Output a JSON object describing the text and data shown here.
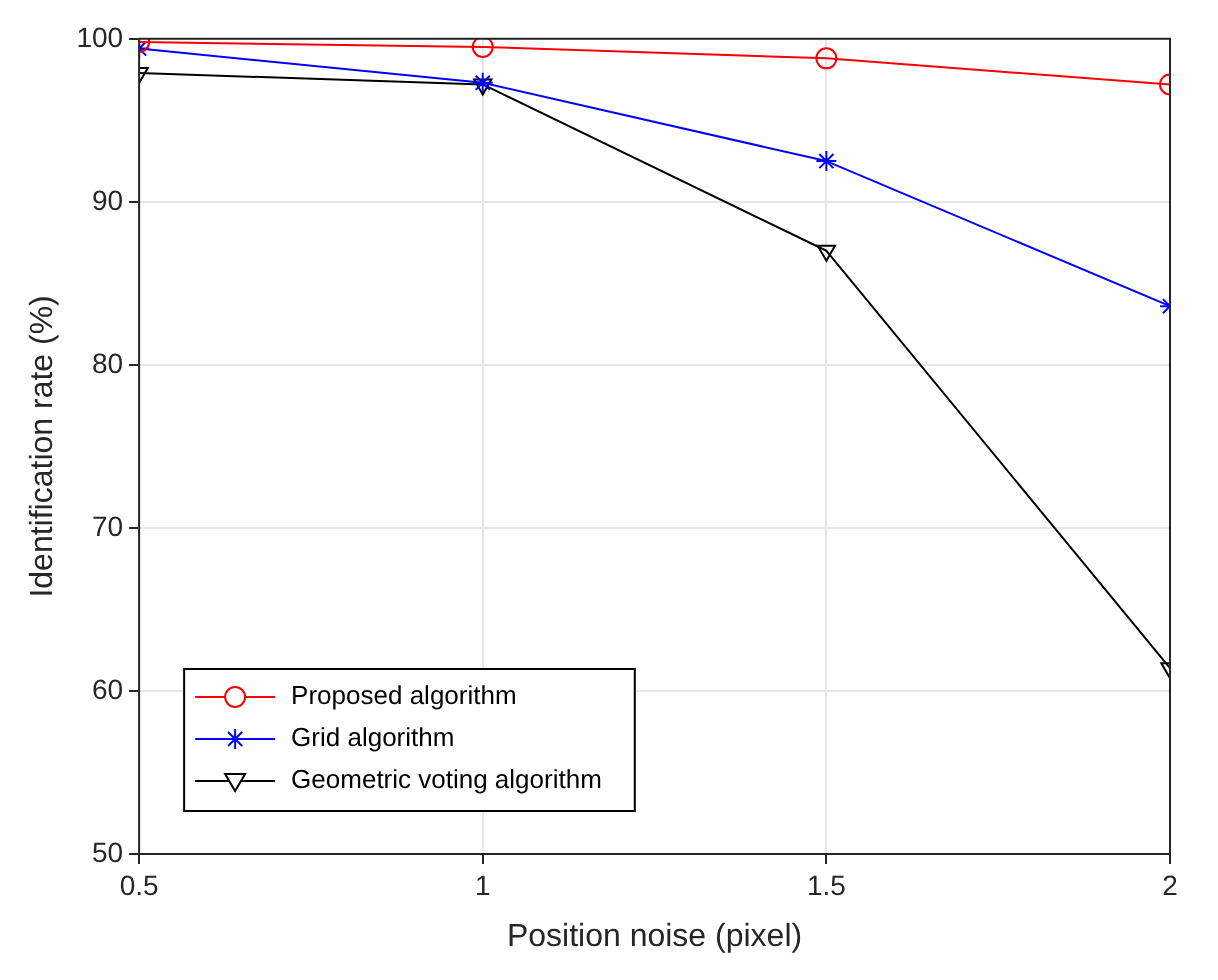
{
  "chart_data": {
    "type": "line",
    "xlabel": "Position noise (pixel)",
    "ylabel": "Identification rate (%)",
    "x": [
      0.5,
      1,
      1.5,
      2
    ],
    "xlim": [
      0.5,
      2
    ],
    "xticks": [
      0.5,
      1,
      1.5,
      2
    ],
    "ylim": [
      50,
      100
    ],
    "yticks": [
      50,
      60,
      70,
      80,
      90,
      100
    ],
    "grid": true,
    "legend": "bottom left",
    "series": [
      {
        "name": "Proposed algorithm",
        "color": "#ff0000",
        "marker": "circle",
        "values": [
          99.8,
          99.5,
          98.8,
          97.2
        ]
      },
      {
        "name": "Grid algorithm",
        "color": "#0000ff",
        "marker": "cross",
        "values": [
          99.4,
          97.3,
          92.5,
          83.6
        ]
      },
      {
        "name": "Geometric voting algorithm",
        "color": "#000000",
        "marker": "triangle",
        "values": [
          97.9,
          97.2,
          87.0,
          61.4
        ]
      }
    ]
  }
}
